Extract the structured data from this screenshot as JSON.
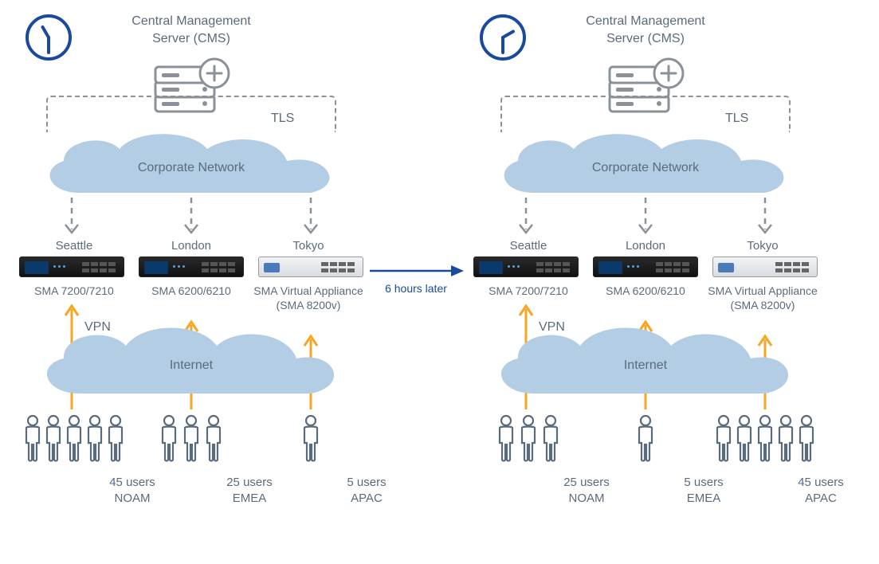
{
  "diagram_type": "network-infographic",
  "colors": {
    "text": "#5a6b7b",
    "clock_stroke": "#1a4a9c",
    "icon_stroke": "#8a9199",
    "dashed_stroke": "#8a9199",
    "cloud_fill": "#b3cde4",
    "vpn_arrow": "#f5a623",
    "center_arrow": "#1a4a9c",
    "device_dark": "#1a1a1a",
    "device_light": "#e4e8ec",
    "background": "#ffffff"
  },
  "center": {
    "label": "6 hours later"
  },
  "common": {
    "title_line1": "Central Management",
    "title_line2": "Server (CMS)",
    "tls_label": "TLS",
    "corp_cloud_label": "Corporate Network",
    "internet_cloud_label": "Internet",
    "vpn_label": "VPN",
    "locations": [
      "Seattle",
      "London",
      "Tokyo"
    ],
    "models": [
      "SMA 7200/7210",
      "SMA 6200/6210",
      "SMA Virtual Appliance (SMA 8200v)"
    ],
    "device_styles": [
      "dark",
      "dark",
      "light"
    ]
  },
  "left": {
    "clock": {
      "hour_angle_deg": -30,
      "minute_angle_deg": 180
    },
    "user_groups": [
      {
        "count_label": "45 users",
        "region": "NOAM",
        "icons": 5
      },
      {
        "count_label": "25 users",
        "region": "EMEA",
        "icons": 3
      },
      {
        "count_label": "5 users",
        "region": "APAC",
        "icons": 1
      }
    ]
  },
  "right": {
    "clock": {
      "hour_angle_deg": 60,
      "minute_angle_deg": 180
    },
    "user_groups": [
      {
        "count_label": "25 users",
        "region": "NOAM",
        "icons": 3
      },
      {
        "count_label": "5 users",
        "region": "EMEA",
        "icons": 1
      },
      {
        "count_label": "45 users",
        "region": "APAC",
        "icons": 5
      }
    ]
  }
}
